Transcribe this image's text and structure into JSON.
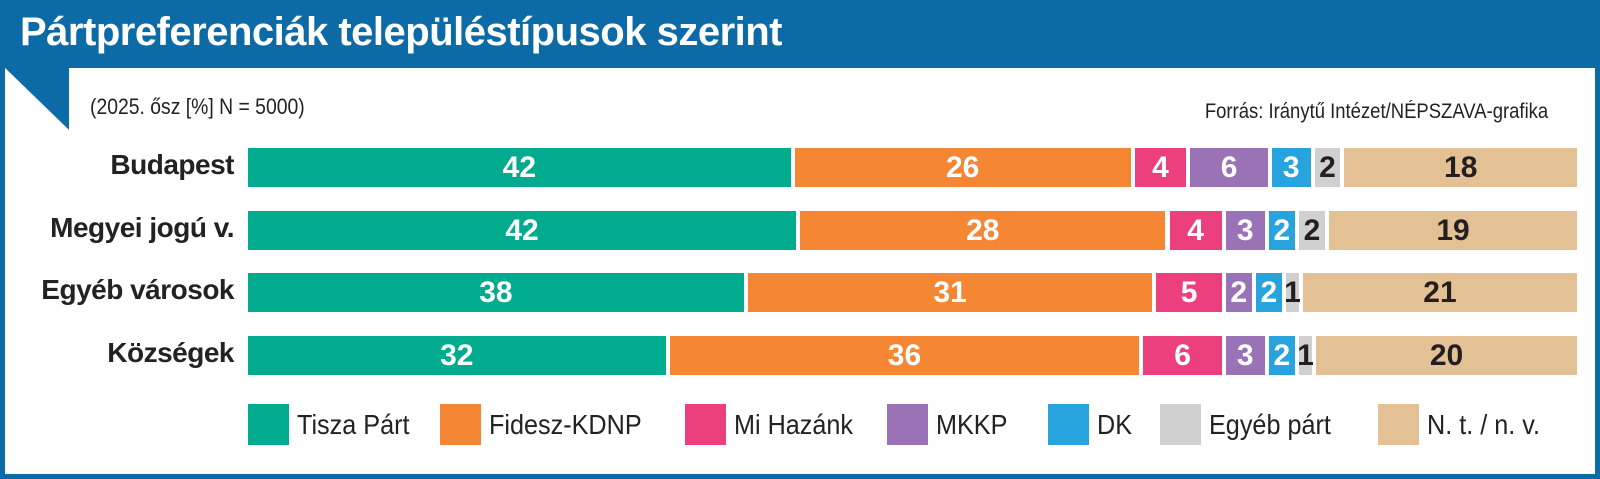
{
  "chart_data": {
    "type": "bar",
    "orientation": "horizontal-stacked",
    "title": "Pártpreferenciák településtípusok szerint",
    "subtitle": "(2025. ősz [%] N = 5000)",
    "source": "Forrás: Iránytű Intézet/NÉPSZAVA-grafika",
    "categories": [
      "Budapest",
      "Megyei jogú v.",
      "Egyéb városok",
      "Községek"
    ],
    "series": [
      {
        "name": "Tisza Párt",
        "color": "#00ab8e",
        "text_color": "#ffffff",
        "values": [
          42,
          42,
          38,
          32
        ]
      },
      {
        "name": "Fidesz-KDNP",
        "color": "#f58634",
        "text_color": "#ffffff",
        "values": [
          26,
          28,
          31,
          36
        ]
      },
      {
        "name": "Mi Hazánk",
        "color": "#ec3f7d",
        "text_color": "#ffffff",
        "values": [
          4,
          4,
          5,
          6
        ]
      },
      {
        "name": "MKKP",
        "color": "#9a72b6",
        "text_color": "#ffffff",
        "values": [
          6,
          3,
          2,
          3
        ]
      },
      {
        "name": "DK",
        "color": "#27a3de",
        "text_color": "#ffffff",
        "values": [
          3,
          2,
          2,
          2
        ]
      },
      {
        "name": "Egyéb párt",
        "color": "#d0d0d0",
        "text_color": "#231f20",
        "values": [
          2,
          2,
          1,
          1
        ]
      },
      {
        "name": "N. t. / n. v.",
        "color": "#e3c195",
        "text_color": "#231f20",
        "values": [
          18,
          19,
          21,
          20
        ]
      }
    ],
    "legend_position": "bottom"
  }
}
